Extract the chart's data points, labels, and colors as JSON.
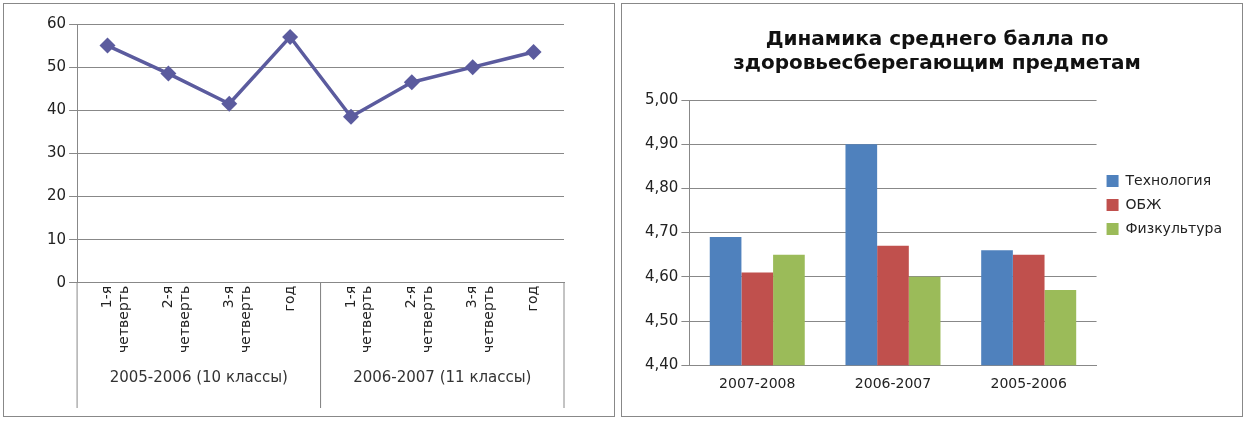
{
  "chart_data": [
    {
      "type": "line",
      "categories": [
        "1-я четверть",
        "2-я четверть",
        "3-я четверть",
        "год",
        "1-я четверть",
        "2-я четверть",
        "3-я четверть",
        "год"
      ],
      "series": [
        {
          "color": "#5b5b9e",
          "values": [
            55,
            48.5,
            41.5,
            57,
            38.5,
            46.5,
            50,
            53.5
          ]
        }
      ],
      "ylim": [
        0,
        60
      ],
      "yticks": [
        0,
        10,
        20,
        30,
        40,
        50,
        60
      ],
      "grid": "y",
      "marker": "diamond",
      "line_style": "solid",
      "annotations": [
        "2005-2006 (10 классы)",
        "2006-2007 (11 классы)"
      ]
    },
    {
      "type": "bar",
      "title": "Динамика среднего балла по здоровьесберегающим предметам",
      "categories": [
        "2007-2008",
        "2006-2007",
        "2005-2006"
      ],
      "series": [
        {
          "name": "Технология",
          "color": "#4f81bd",
          "values": [
            4.69,
            4.9,
            4.66
          ]
        },
        {
          "name": "ОБЖ",
          "color": "#c0504d",
          "values": [
            4.61,
            4.67,
            4.65
          ]
        },
        {
          "name": "Физкультура",
          "color": "#9bbb59",
          "values": [
            4.65,
            4.6,
            4.57
          ]
        }
      ],
      "ylim": [
        4.4,
        5.0
      ],
      "yticks": [
        {
          "value": 4.4,
          "label": "4,40"
        },
        {
          "value": 4.5,
          "label": "4,50"
        },
        {
          "value": 4.6,
          "label": "4,60"
        },
        {
          "value": 4.7,
          "label": "4,70"
        },
        {
          "value": 4.8,
          "label": "4,80"
        },
        {
          "value": 4.9,
          "label": "4,90"
        },
        {
          "value": 5.0,
          "label": "5,00"
        }
      ],
      "grid": "y",
      "legend": "right"
    }
  ]
}
